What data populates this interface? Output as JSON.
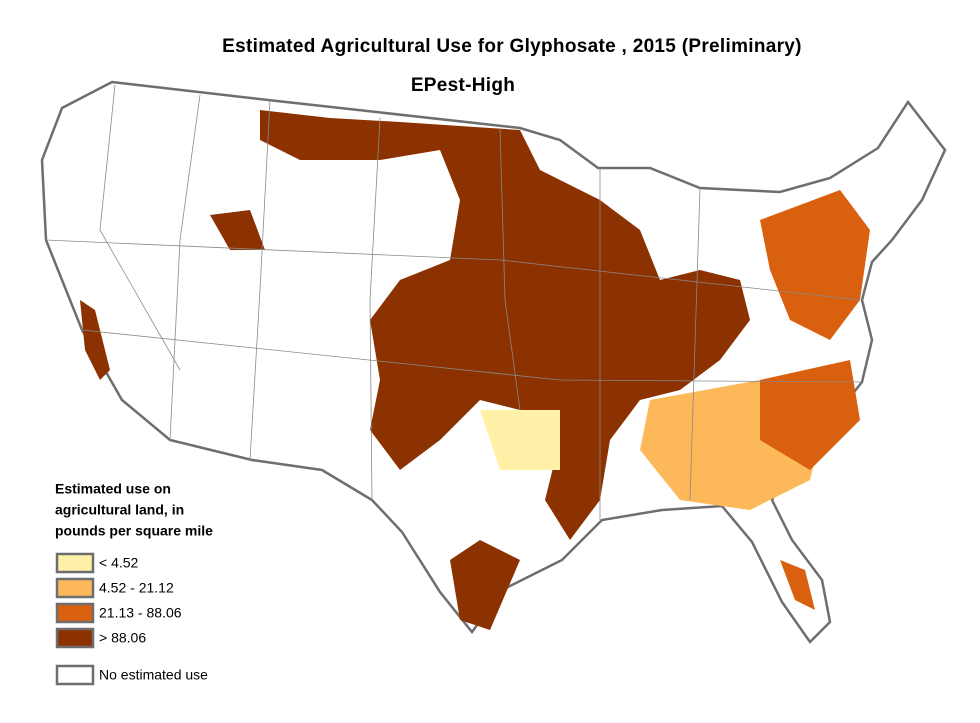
{
  "title": "Estimated Agricultural Use for Glyphosate , 2015 (Preliminary)",
  "subtitle": "EPest-High",
  "legend": {
    "title_lines": [
      "Estimated use on",
      "agricultural land, in",
      "pounds per square mile"
    ],
    "items": [
      {
        "label": "< 4.52",
        "color": "#fff1a8"
      },
      {
        "label": "4.52 - 21.12",
        "color": "#fdb85a"
      },
      {
        "label": "21.13 - 88.06",
        "color": "#d9600e"
      },
      {
        "label": "> 88.06",
        "color": "#8b3200"
      },
      {
        "label": "No estimated use",
        "color": "#ffffff"
      }
    ]
  }
}
